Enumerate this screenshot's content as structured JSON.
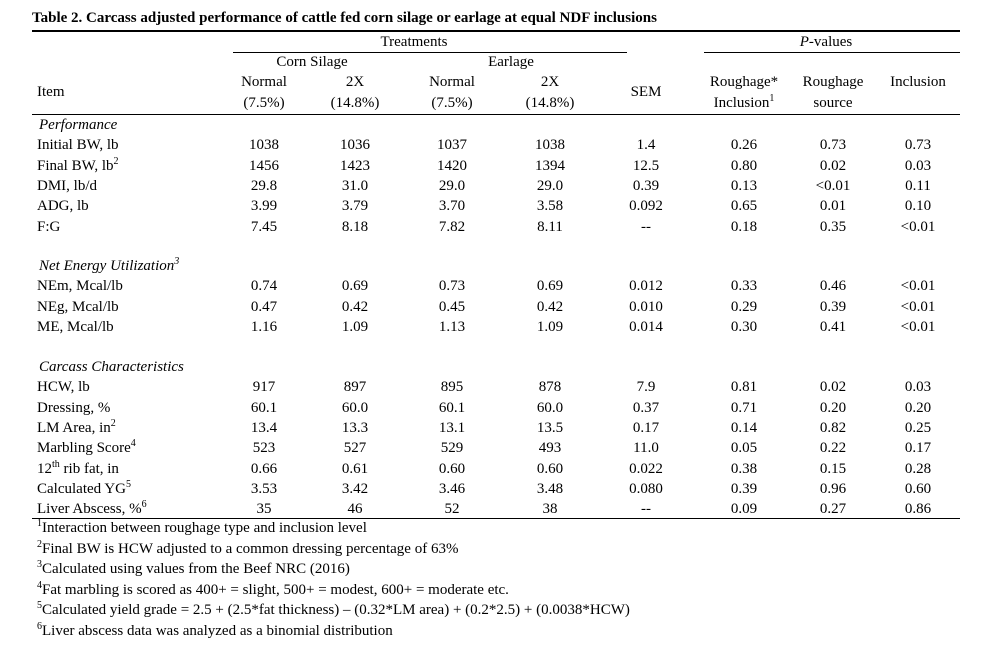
{
  "title": "Table 2. Carcass adjusted performance of cattle fed corn silage or earlage at equal NDF inclusions",
  "header": {
    "treatments": "Treatments",
    "pvalues_p": "P",
    "pvalues_rest": "-values",
    "corn_silage": "Corn Silage",
    "earlage": "Earlage",
    "item": "Item",
    "normal": "Normal",
    "normal_pct": "(7.5%)",
    "x2": "2X",
    "x2_pct": "(14.8%)",
    "sem": "SEM",
    "rxi_1": "Roughage*",
    "rxi_2": "Inclusion",
    "rxi_sup": "1",
    "rs_1": "Roughage",
    "rs_2": "source",
    "inclusion": "Inclusion"
  },
  "sections": [
    {
      "title": "Performance",
      "rows": [
        {
          "label": "Initial BW, lb",
          "sup": "",
          "values": [
            "1038",
            "1036",
            "1037",
            "1038",
            "1.4",
            "0.26",
            "0.73",
            "0.73"
          ]
        },
        {
          "label": "Final BW, lb",
          "sup": "2",
          "values": [
            "1456",
            "1423",
            "1420",
            "1394",
            "12.5",
            "0.80",
            "0.02",
            "0.03"
          ]
        },
        {
          "label": "DMI, lb/d",
          "sup": "",
          "values": [
            "29.8",
            "31.0",
            "29.0",
            "29.0",
            "0.39",
            "0.13",
            "<0.01",
            "0.11"
          ]
        },
        {
          "label": "ADG, lb",
          "sup": "",
          "values": [
            "3.99",
            "3.79",
            "3.70",
            "3.58",
            "0.092",
            "0.65",
            "0.01",
            "0.10"
          ]
        },
        {
          "label": "F:G",
          "sup": "",
          "values": [
            "7.45",
            "8.18",
            "7.82",
            "8.11",
            "--",
            "0.18",
            "0.35",
            "<0.01"
          ]
        }
      ]
    },
    {
      "title": "Net Energy Utilization",
      "title_sup": "3",
      "rows": [
        {
          "label": "NEm, Mcal/lb",
          "sup": "",
          "values": [
            "0.74",
            "0.69",
            "0.73",
            "0.69",
            "0.012",
            "0.33",
            "0.46",
            "<0.01"
          ]
        },
        {
          "label": "NEg, Mcal/lb",
          "sup": "",
          "values": [
            "0.47",
            "0.42",
            "0.45",
            "0.42",
            "0.010",
            "0.29",
            "0.39",
            "<0.01"
          ]
        },
        {
          "label": "ME, Mcal/lb",
          "sup": "",
          "values": [
            "1.16",
            "1.09",
            "1.13",
            "1.09",
            "0.014",
            "0.30",
            "0.41",
            "<0.01"
          ]
        }
      ]
    },
    {
      "title": "Carcass Characteristics",
      "rows": [
        {
          "label": "HCW, lb",
          "sup": "",
          "values": [
            "917",
            "897",
            "895",
            "878",
            "7.9",
            "0.81",
            "0.02",
            "0.03"
          ]
        },
        {
          "label": "Dressing, %",
          "sup": "",
          "values": [
            "60.1",
            "60.0",
            "60.1",
            "60.0",
            "0.37",
            "0.71",
            "0.20",
            "0.20"
          ]
        },
        {
          "label": "LM Area, in",
          "sup": "2",
          "values": [
            "13.4",
            "13.3",
            "13.1",
            "13.5",
            "0.17",
            "0.14",
            "0.82",
            "0.25"
          ]
        },
        {
          "label": "Marbling Score",
          "sup": "4",
          "values": [
            "523",
            "527",
            "529",
            "493",
            "11.0",
            "0.05",
            "0.22",
            "0.17"
          ]
        },
        {
          "label": "12",
          "sup": "th",
          "label_after": " rib fat, in",
          "values": [
            "0.66",
            "0.61",
            "0.60",
            "0.60",
            "0.022",
            "0.38",
            "0.15",
            "0.28"
          ]
        },
        {
          "label": "Calculated YG",
          "sup": "5",
          "values": [
            "3.53",
            "3.42",
            "3.46",
            "3.48",
            "0.080",
            "0.39",
            "0.96",
            "0.60"
          ]
        },
        {
          "label": "Liver Abscess, %",
          "sup": "6",
          "values": [
            "35",
            "46",
            "52",
            "38",
            "--",
            "0.09",
            "0.27",
            "0.86"
          ]
        }
      ]
    }
  ],
  "footnotes": [
    {
      "num": "1",
      "text": "Interaction between roughage type and inclusion level"
    },
    {
      "num": "2",
      "text": "Final BW is HCW adjusted to a common dressing percentage of 63%"
    },
    {
      "num": "3",
      "text": "Calculated using values from the Beef NRC (2016)"
    },
    {
      "num": "4",
      "text": "Fat marbling is scored as 400+ = slight, 500+ = modest, 600+ = moderate etc."
    },
    {
      "num": "5",
      "text": "Calculated yield grade = 2.5 + (2.5*fat thickness) – (0.32*LM area) + (0.2*2.5) + (0.0038*HCW)"
    },
    {
      "num": "6",
      "text": "Liver abscess data was analyzed as a binomial distribution"
    }
  ]
}
